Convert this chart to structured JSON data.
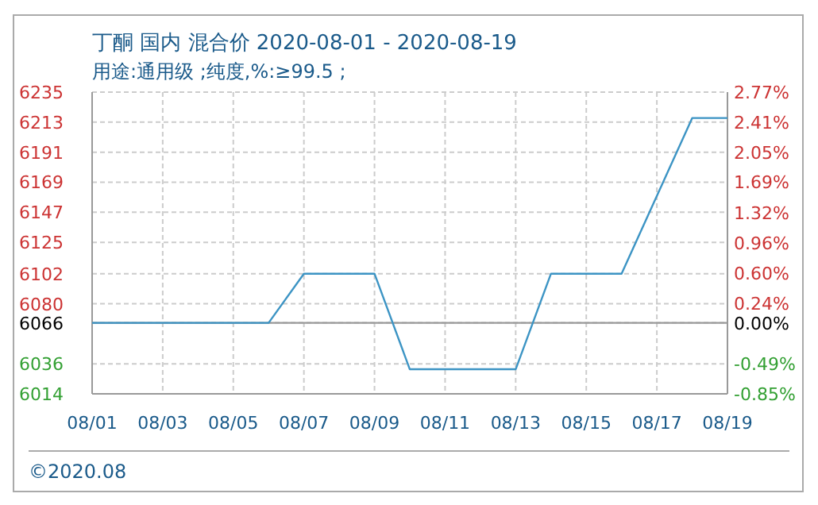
{
  "chart_data": {
    "type": "line",
    "title": "丁酮 国内 混合价 2020-08-01 - 2020-08-19",
    "subtitle": "用途:通用级 ;纯度,%:≥99.5 ;",
    "categories": [
      "08/01",
      null,
      "08/03",
      null,
      "08/05",
      null,
      "08/07",
      null,
      "08/09",
      null,
      "08/11",
      null,
      "08/13",
      null,
      "08/15",
      null,
      "08/17",
      null,
      "08/19"
    ],
    "series": [
      {
        "color": "#3c94c4",
        "values": [
          6066,
          6066,
          6066,
          6066,
          6066,
          6066,
          6102,
          6102,
          6102,
          6032,
          6032,
          6032,
          6032,
          6102,
          6102,
          6102,
          6159,
          6216,
          6216
        ]
      }
    ],
    "ylim": [
      6014,
      6235
    ],
    "yticks": [
      6014,
      6036,
      6066,
      6080,
      6102,
      6125,
      6147,
      6169,
      6191,
      6213,
      6235
    ],
    "y2lim": [
      -0.85,
      2.77
    ],
    "y2ticks": [
      {
        "value": -0.85,
        "label": "-0.85%"
      },
      {
        "value": -0.49,
        "label": "-0.49%"
      },
      {
        "value": 0,
        "label": "0.00%"
      },
      {
        "value": 0.24,
        "label": "0.24%"
      },
      {
        "value": 0.6,
        "label": "0.60%"
      },
      {
        "value": 0.96,
        "label": "0.96%"
      },
      {
        "value": 1.32,
        "label": "1.32%"
      },
      {
        "value": 1.69,
        "label": "1.69%"
      },
      {
        "value": 2.05,
        "label": "2.05%"
      },
      {
        "value": 2.41,
        "label": "2.41%"
      },
      {
        "value": 2.77,
        "label": "2.77%"
      }
    ],
    "ref_lines": [
      {
        "axis": "y",
        "value": 6066,
        "color": "#999999"
      }
    ],
    "grid": true,
    "line_style": "solid",
    "marker": "none",
    "annotations": [
      "©2020.08"
    ]
  }
}
